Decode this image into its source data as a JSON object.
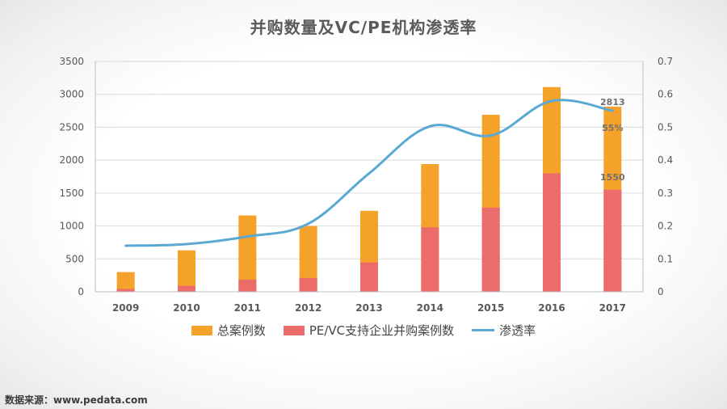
{
  "chart_data": {
    "type": "bar",
    "title": "并购数量及VC/PE机构渗透率",
    "categories": [
      "2009",
      "2010",
      "2011",
      "2012",
      "2013",
      "2014",
      "2015",
      "2016",
      "2017"
    ],
    "series": [
      {
        "name": "总案例数",
        "type": "bar",
        "axis": "left",
        "color": "#f5a22a",
        "values": [
          300,
          630,
          1160,
          1000,
          1230,
          1940,
          2690,
          3110,
          2813
        ]
      },
      {
        "name": "PE/VC支持企业并购案例数",
        "type": "bar",
        "axis": "left",
        "color": "#ec6b6b",
        "values": [
          42,
          90,
          185,
          210,
          445,
          980,
          1280,
          1800,
          1550
        ]
      },
      {
        "name": "渗透率",
        "type": "line",
        "axis": "right",
        "color": "#5aa9d2",
        "values": [
          0.14,
          0.145,
          0.168,
          0.207,
          0.36,
          0.503,
          0.475,
          0.58,
          0.55
        ]
      }
    ],
    "yticks_left": [
      "0",
      "500",
      "1000",
      "1500",
      "2000",
      "2500",
      "3000",
      "3500"
    ],
    "yticks_right": [
      "0",
      "0.1",
      "0.2",
      "0.3",
      "0.4",
      "0.5",
      "0.6",
      "0.7"
    ],
    "ylim_left": [
      0,
      3500
    ],
    "ylim_right": [
      0,
      0.7
    ],
    "grid": true,
    "legend_position": "bottom",
    "annotations": [
      "2813",
      "55%",
      "1550"
    ]
  },
  "legend": {
    "total": "总案例数",
    "pevc": "PE/VC支持企业并购案例数",
    "rate": "渗透率"
  },
  "colors": {
    "total": "#f5a22a",
    "pevc": "#ec6b6b",
    "rate": "#5aa9d2"
  },
  "source_note": "数据来源：www.pedata.com"
}
